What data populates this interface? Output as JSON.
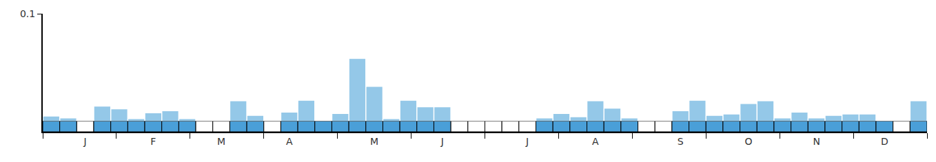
{
  "chart_data": {
    "type": "bar",
    "categories": [
      null,
      null,
      "J",
      null,
      null,
      null,
      "F",
      null,
      null,
      null,
      "M",
      null,
      null,
      null,
      "A",
      null,
      null,
      null,
      null,
      "M",
      null,
      null,
      null,
      "J",
      null,
      null,
      null,
      null,
      "J",
      null,
      null,
      null,
      "A",
      null,
      null,
      null,
      null,
      "S",
      null,
      null,
      null,
      "O",
      null,
      null,
      null,
      "N",
      null,
      null,
      null,
      "D",
      null,
      null
    ],
    "values": [
      0.0043,
      0.0025,
      0,
      0.0136,
      0.011,
      0.0019,
      0.0074,
      0.0093,
      0.0019,
      0,
      0,
      0.0185,
      0.0049,
      0,
      0.008,
      0.019,
      0,
      0.0068,
      0.058,
      0.032,
      0.0019,
      0.019,
      0.013,
      0.013,
      0,
      0,
      0,
      0,
      0,
      0.0025,
      0.0068,
      0.0037,
      0.0185,
      0.0117,
      0.0025,
      0,
      0,
      0.0093,
      0.019,
      0.0049,
      0.0062,
      0.016,
      0.0185,
      0.0025,
      0.008,
      0.0025,
      0.0049,
      0.0062,
      0.0062,
      0,
      0,
      0.0185
    ],
    "recorded": [
      true,
      true,
      false,
      true,
      true,
      true,
      true,
      true,
      true,
      false,
      false,
      true,
      true,
      false,
      true,
      true,
      true,
      true,
      true,
      true,
      true,
      true,
      true,
      true,
      false,
      false,
      false,
      false,
      false,
      true,
      true,
      true,
      true,
      true,
      true,
      false,
      false,
      true,
      true,
      true,
      true,
      true,
      true,
      true,
      true,
      true,
      true,
      true,
      true,
      true,
      false,
      true
    ],
    "color": "#94c8e8",
    "recorded_color": "#4a9fd8",
    "ylim": [
      0,
      0.1
    ],
    "yticks": [
      0.1
    ],
    "grid": false
  }
}
